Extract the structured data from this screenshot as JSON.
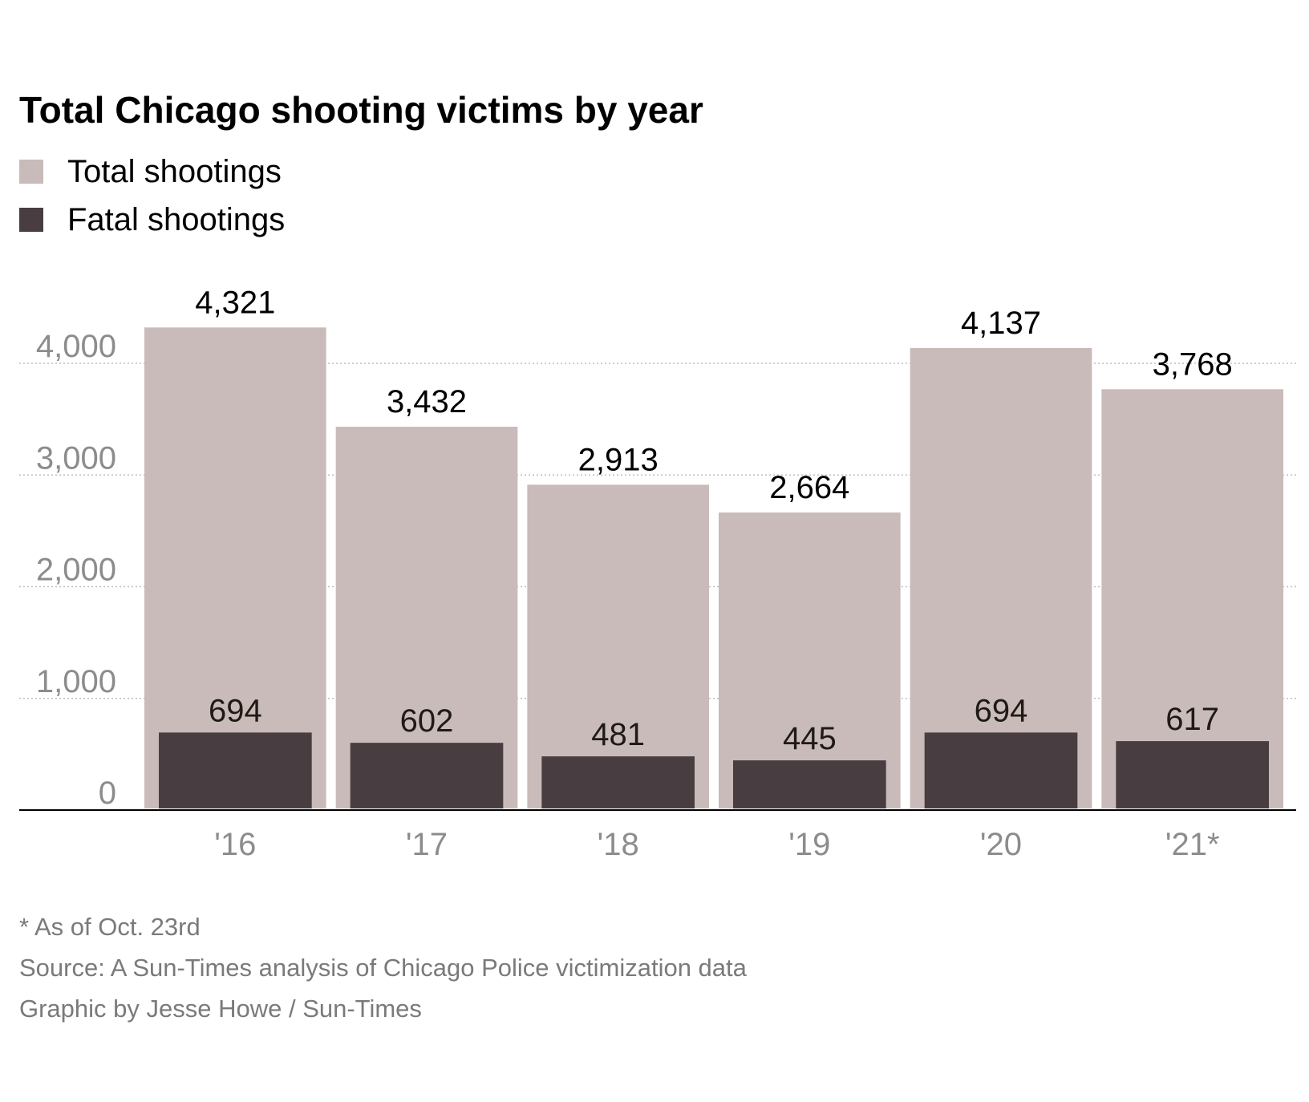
{
  "chart_data": {
    "type": "bar",
    "title": "Total Chicago shooting victims by year",
    "categories": [
      "'16",
      "'17",
      "'18",
      "'19",
      "'20",
      "'21*"
    ],
    "series": [
      {
        "name": "Total shootings",
        "color": "#c9bbb9",
        "values": [
          4321,
          3432,
          2913,
          2664,
          4137,
          3768
        ],
        "labels": [
          "4,321",
          "3,432",
          "2,913",
          "2,664",
          "4,137",
          "3,768"
        ]
      },
      {
        "name": "Fatal shootings",
        "color": "#483e41",
        "values": [
          694,
          602,
          481,
          445,
          694,
          617
        ],
        "labels": [
          "694",
          "602",
          "481",
          "445",
          "694",
          "617"
        ]
      }
    ],
    "y_ticks": [
      0,
      1000,
      2000,
      3000,
      4000
    ],
    "y_tick_labels": [
      "0",
      "1,000",
      "2,000",
      "3,000",
      "4,000"
    ],
    "ylim": [
      0,
      4000
    ],
    "grid": true,
    "legend_position": "top-left",
    "xlabel": "",
    "ylabel": ""
  },
  "footnote": "* As of Oct. 23rd",
  "source": "Source: A Sun-Times analysis of Chicago Police victimization data",
  "credit": "Graphic by Jesse Howe / Sun-Times"
}
